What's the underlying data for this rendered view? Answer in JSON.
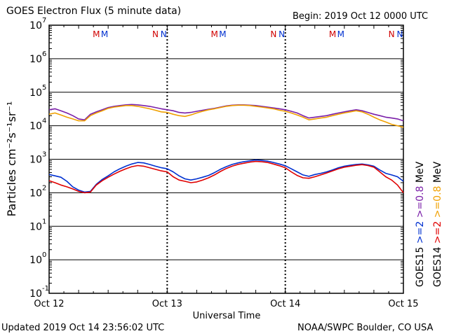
{
  "header": {
    "title": "GOES Electron Flux (5 minute data)",
    "begin": "Begin: 2019 Oct 12 0000 UTC"
  },
  "footer": {
    "updated": "Updated 2019 Oct 14 23:56:02 UTC",
    "credit": "NOAA/SWPC Boulder, CO USA"
  },
  "chart_data": {
    "type": "line",
    "title": "GOES Electron Flux (5 minute data)",
    "xlabel": "Universal Time",
    "ylabel": "Particles cm⁻²s⁻¹sr⁻¹",
    "yscale": "log",
    "ylim_exponents": [
      -1,
      7
    ],
    "xlim_days": [
      0,
      3
    ],
    "x_ticks": [
      "Oct 12",
      "Oct 13",
      "Oct 14",
      "Oct 15"
    ],
    "y_tick_labels": [
      "10",
      "10",
      "10",
      "10",
      "10",
      "10",
      "10",
      "10",
      "10"
    ],
    "y_tick_exponents": [
      "-1",
      "0",
      "1",
      "2",
      "3",
      "4",
      "5",
      "6",
      "7"
    ],
    "threshold": 1000,
    "grid": true,
    "markers": {
      "labels": [
        "M",
        "M",
        "N",
        "N",
        "M",
        "M",
        "N",
        "N",
        "M",
        "M",
        "N",
        "N"
      ],
      "colors": [
        "#d00000",
        "#0030d0",
        "#d00000",
        "#0030d0",
        "#d00000",
        "#0030d0",
        "#d00000",
        "#0030d0",
        "#d00000",
        "#0030d0",
        "#d00000",
        "#0030d0"
      ],
      "x_days": [
        0.4,
        0.47,
        0.9,
        0.97,
        1.4,
        1.47,
        1.9,
        1.97,
        2.4,
        2.47,
        2.9,
        2.97
      ]
    },
    "legend": {
      "left_column": [
        "GOES15",
        ">=2",
        ">=0.8"
      ],
      "right_column": [
        "GOES14",
        ">=2",
        ">=0.8"
      ],
      "unit": "MeV",
      "unit_label": "MeV"
    },
    "series": [
      {
        "name": "GOES15 >=2 MeV",
        "color": "#0030d0",
        "x": [
          0,
          0.05,
          0.1,
          0.15,
          0.2,
          0.25,
          0.3,
          0.35,
          0.4,
          0.45,
          0.5,
          0.55,
          0.6,
          0.65,
          0.7,
          0.75,
          0.8,
          0.85,
          0.9,
          0.95,
          1.0,
          1.05,
          1.1,
          1.15,
          1.2,
          1.25,
          1.3,
          1.35,
          1.4,
          1.45,
          1.5,
          1.55,
          1.6,
          1.65,
          1.7,
          1.75,
          1.8,
          1.85,
          1.9,
          1.95,
          2.0,
          2.05,
          2.1,
          2.15,
          2.2,
          2.25,
          2.3,
          2.35,
          2.4,
          2.45,
          2.5,
          2.55,
          2.6,
          2.65,
          2.7,
          2.75,
          2.8,
          2.85,
          2.9,
          2.95,
          3.0
        ],
        "y": [
          350,
          320,
          290,
          220,
          150,
          120,
          105,
          110,
          180,
          250,
          320,
          420,
          520,
          620,
          720,
          800,
          780,
          700,
          620,
          560,
          520,
          420,
          320,
          260,
          240,
          260,
          290,
          330,
          400,
          500,
          600,
          700,
          780,
          850,
          900,
          950,
          920,
          880,
          800,
          720,
          640,
          520,
          420,
          340,
          310,
          350,
          380,
          420,
          480,
          560,
          620,
          660,
          700,
          720,
          680,
          620,
          480,
          380,
          340,
          300,
          220
        ]
      },
      {
        "name": "GOES14 >=2 MeV",
        "color": "#e00000",
        "x": [
          0,
          0.05,
          0.1,
          0.15,
          0.2,
          0.25,
          0.3,
          0.35,
          0.4,
          0.45,
          0.5,
          0.55,
          0.6,
          0.65,
          0.7,
          0.75,
          0.8,
          0.85,
          0.9,
          0.95,
          1.0,
          1.05,
          1.1,
          1.15,
          1.2,
          1.25,
          1.3,
          1.35,
          1.4,
          1.45,
          1.5,
          1.55,
          1.6,
          1.65,
          1.7,
          1.75,
          1.8,
          1.85,
          1.9,
          1.95,
          2.0,
          2.05,
          2.1,
          2.15,
          2.2,
          2.25,
          2.3,
          2.35,
          2.4,
          2.45,
          2.5,
          2.55,
          2.6,
          2.65,
          2.7,
          2.75,
          2.8,
          2.85,
          2.9,
          2.95,
          3.0
        ],
        "y": [
          230,
          200,
          170,
          150,
          130,
          110,
          100,
          105,
          170,
          230,
          290,
          360,
          440,
          520,
          600,
          650,
          620,
          560,
          500,
          450,
          420,
          300,
          240,
          220,
          200,
          210,
          240,
          280,
          340,
          430,
          530,
          620,
          700,
          760,
          820,
          860,
          840,
          800,
          720,
          640,
          560,
          420,
          330,
          280,
          270,
          300,
          340,
          390,
          450,
          520,
          580,
          620,
          660,
          690,
          650,
          580,
          420,
          300,
          240,
          170,
          100
        ]
      },
      {
        "name": "GOES15 >=0.8 MeV",
        "color": "#7a1fa8",
        "x": [
          0,
          0.05,
          0.1,
          0.15,
          0.2,
          0.25,
          0.3,
          0.35,
          0.4,
          0.45,
          0.5,
          0.55,
          0.6,
          0.65,
          0.7,
          0.75,
          0.8,
          0.85,
          0.9,
          0.95,
          1.0,
          1.05,
          1.1,
          1.15,
          1.2,
          1.25,
          1.3,
          1.35,
          1.4,
          1.45,
          1.5,
          1.55,
          1.6,
          1.65,
          1.7,
          1.75,
          1.8,
          1.85,
          1.9,
          1.95,
          2.0,
          2.05,
          2.1,
          2.15,
          2.2,
          2.25,
          2.3,
          2.35,
          2.4,
          2.45,
          2.5,
          2.55,
          2.6,
          2.65,
          2.7,
          2.75,
          2.8,
          2.85,
          2.9,
          2.95,
          3.0
        ],
        "y": [
          30000,
          32000,
          28000,
          24000,
          20000,
          16000,
          15000,
          22000,
          26000,
          30000,
          35000,
          38000,
          40000,
          42000,
          43000,
          42000,
          40000,
          38000,
          35000,
          32000,
          30000,
          28000,
          25000,
          24000,
          25000,
          27000,
          29000,
          31000,
          33000,
          36000,
          39000,
          41000,
          42000,
          42000,
          41000,
          40000,
          38000,
          36000,
          34000,
          32000,
          30000,
          27000,
          24000,
          20000,
          17000,
          18000,
          19000,
          20000,
          22000,
          24000,
          26000,
          28000,
          30000,
          28000,
          25000,
          22000,
          20000,
          18000,
          17000,
          16000,
          14000
        ]
      },
      {
        "name": "GOES14 >=0.8 MeV",
        "color": "#f0a000",
        "x": [
          0,
          0.05,
          0.1,
          0.15,
          0.2,
          0.25,
          0.3,
          0.35,
          0.4,
          0.45,
          0.5,
          0.55,
          0.6,
          0.65,
          0.7,
          0.75,
          0.8,
          0.85,
          0.9,
          0.95,
          1.0,
          1.05,
          1.1,
          1.15,
          1.2,
          1.25,
          1.3,
          1.35,
          1.4,
          1.45,
          1.5,
          1.55,
          1.6,
          1.65,
          1.7,
          1.75,
          1.8,
          1.85,
          1.9,
          1.95,
          2.0,
          2.05,
          2.1,
          2.15,
          2.2,
          2.25,
          2.3,
          2.35,
          2.4,
          2.45,
          2.5,
          2.55,
          2.6,
          2.65,
          2.7,
          2.75,
          2.8,
          2.85,
          2.9,
          2.95,
          3.0
        ],
        "y": [
          22000,
          24000,
          21000,
          18000,
          16000,
          14000,
          14000,
          20000,
          24000,
          28000,
          33000,
          36000,
          38000,
          40000,
          40000,
          38000,
          35000,
          32000,
          29000,
          26000,
          25000,
          22000,
          20000,
          19000,
          21000,
          24000,
          27000,
          30000,
          32000,
          35000,
          38000,
          40000,
          41000,
          41000,
          40000,
          38000,
          36000,
          34000,
          32000,
          29000,
          27000,
          24000,
          21000,
          18000,
          15000,
          16000,
          17000,
          18000,
          20000,
          22000,
          24000,
          26000,
          28000,
          26000,
          22000,
          18000,
          15000,
          13000,
          11000,
          10000,
          9000
        ]
      }
    ]
  }
}
